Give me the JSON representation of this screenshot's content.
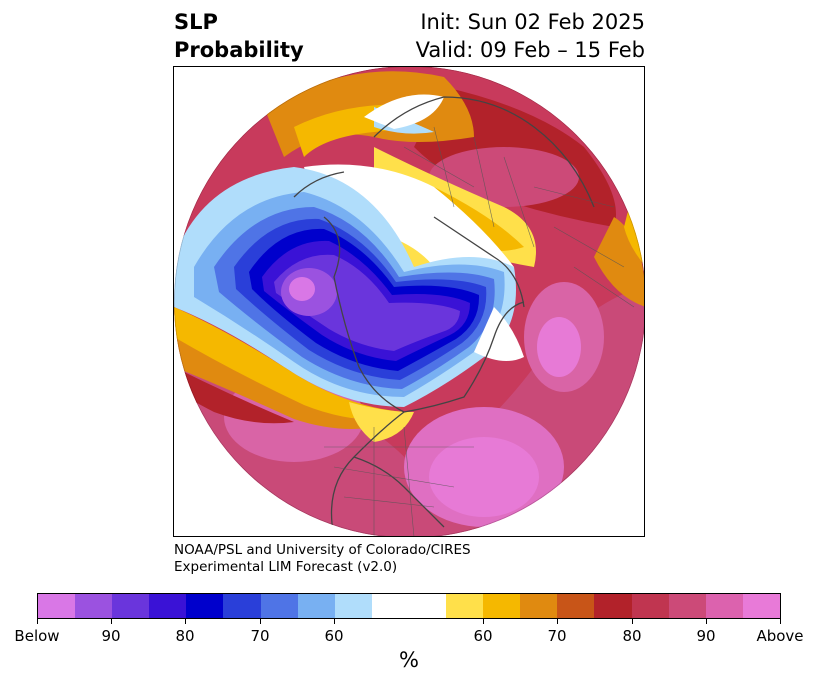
{
  "header": {
    "title_line1": "SLP",
    "title_line2": "Probability",
    "init": "Init: Sun 02 Feb 2025",
    "valid": "Valid: 09 Feb – 15 Feb"
  },
  "credit": {
    "line1": "NOAA/PSL and University of Colorado/CIRES",
    "line2": "Experimental LIM Forecast (v2.0)"
  },
  "colorbar": {
    "colors": [
      "#d977e6",
      "#9b52e0",
      "#6a35dc",
      "#3a12d6",
      "#0000cc",
      "#2a3fd9",
      "#4f74e6",
      "#78b0f2",
      "#b0ddfb",
      "#ffffff",
      "#ffffff",
      "#ffe04a",
      "#f5b800",
      "#e08a10",
      "#c85518",
      "#b2222a",
      "#c03550",
      "#cc4a78",
      "#dc62ae",
      "#e87ad8"
    ],
    "tick_labels": [
      "Below",
      "90",
      "80",
      "70",
      "60",
      "60",
      "70",
      "80",
      "90",
      "Above"
    ],
    "unit": "%"
  }
}
